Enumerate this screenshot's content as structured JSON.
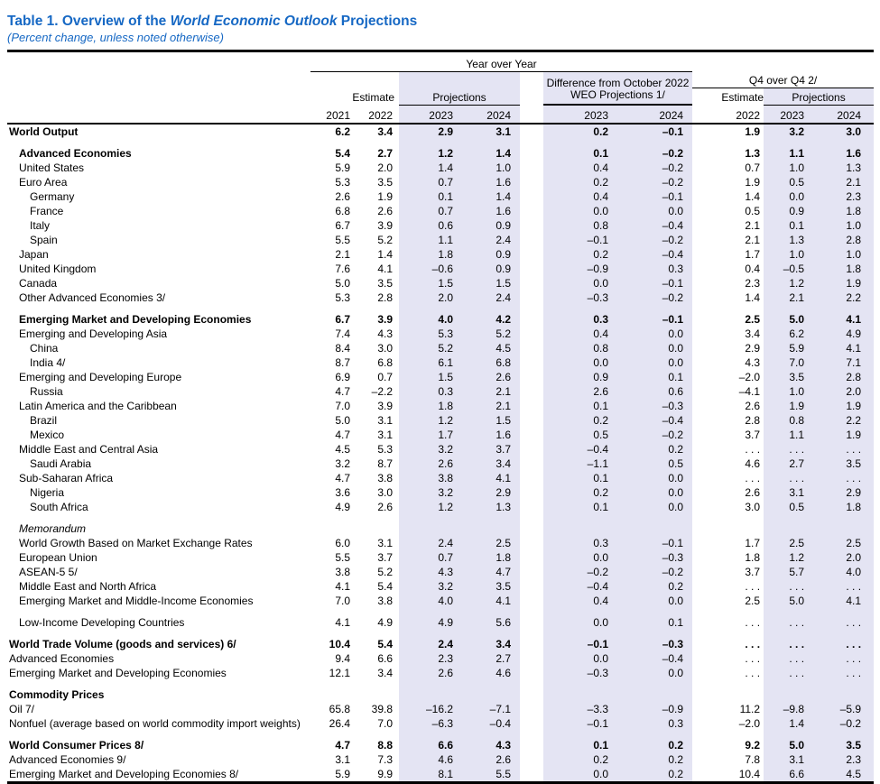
{
  "title": {
    "prefix": "Table 1. Overview of the ",
    "emphasis": "World Economic Outlook",
    "suffix": " Projections"
  },
  "subtitle": "(Percent change, unless noted otherwise)",
  "colors": {
    "title_blue": "#1668C4",
    "band_lavender": "#E4E4F3",
    "rule_black": "#000000"
  },
  "header": {
    "year_over_year": "Year over Year",
    "diff_line1": "Difference from October 2022",
    "diff_line2": "WEO Projections 1/",
    "q4_over_q4": "Q4 over Q4 2/",
    "estimate": "Estimate",
    "projections": "Projections",
    "years_main": [
      "2021",
      "2022",
      "2023",
      "2024"
    ],
    "years_diff": [
      "2023",
      "2024"
    ],
    "years_q4": [
      "2022",
      "2023",
      "2024"
    ]
  },
  "rows": [
    {
      "label": "World Output",
      "indent": 0,
      "bold": true,
      "italic": false,
      "gap_before": false,
      "values": [
        "6.2",
        "3.4",
        "2.9",
        "3.1",
        "0.2",
        "–0.1",
        "1.9",
        "3.2",
        "3.0"
      ]
    },
    {
      "label": "Advanced Economies",
      "indent": 1,
      "bold": true,
      "italic": false,
      "gap_before": true,
      "values": [
        "5.4",
        "2.7",
        "1.2",
        "1.4",
        "0.1",
        "–0.2",
        "1.3",
        "1.1",
        "1.6"
      ]
    },
    {
      "label": "United States",
      "indent": 1,
      "bold": false,
      "italic": false,
      "gap_before": false,
      "values": [
        "5.9",
        "2.0",
        "1.4",
        "1.0",
        "0.4",
        "–0.2",
        "0.7",
        "1.0",
        "1.3"
      ]
    },
    {
      "label": "Euro Area",
      "indent": 1,
      "bold": false,
      "italic": false,
      "gap_before": false,
      "values": [
        "5.3",
        "3.5",
        "0.7",
        "1.6",
        "0.2",
        "–0.2",
        "1.9",
        "0.5",
        "2.1"
      ]
    },
    {
      "label": "Germany",
      "indent": 2,
      "bold": false,
      "italic": false,
      "gap_before": false,
      "values": [
        "2.6",
        "1.9",
        "0.1",
        "1.4",
        "0.4",
        "–0.1",
        "1.4",
        "0.0",
        "2.3"
      ]
    },
    {
      "label": "France",
      "indent": 2,
      "bold": false,
      "italic": false,
      "gap_before": false,
      "values": [
        "6.8",
        "2.6",
        "0.7",
        "1.6",
        "0.0",
        "0.0",
        "0.5",
        "0.9",
        "1.8"
      ]
    },
    {
      "label": "Italy",
      "indent": 2,
      "bold": false,
      "italic": false,
      "gap_before": false,
      "values": [
        "6.7",
        "3.9",
        "0.6",
        "0.9",
        "0.8",
        "–0.4",
        "2.1",
        "0.1",
        "1.0"
      ]
    },
    {
      "label": "Spain",
      "indent": 2,
      "bold": false,
      "italic": false,
      "gap_before": false,
      "values": [
        "5.5",
        "5.2",
        "1.1",
        "2.4",
        "–0.1",
        "–0.2",
        "2.1",
        "1.3",
        "2.8"
      ]
    },
    {
      "label": "Japan",
      "indent": 1,
      "bold": false,
      "italic": false,
      "gap_before": false,
      "values": [
        "2.1",
        "1.4",
        "1.8",
        "0.9",
        "0.2",
        "–0.4",
        "1.7",
        "1.0",
        "1.0"
      ]
    },
    {
      "label": "United Kingdom",
      "indent": 1,
      "bold": false,
      "italic": false,
      "gap_before": false,
      "values": [
        "7.6",
        "4.1",
        "–0.6",
        "0.9",
        "–0.9",
        "0.3",
        "0.4",
        "–0.5",
        "1.8"
      ]
    },
    {
      "label": "Canada",
      "indent": 1,
      "bold": false,
      "italic": false,
      "gap_before": false,
      "values": [
        "5.0",
        "3.5",
        "1.5",
        "1.5",
        "0.0",
        "–0.1",
        "2.3",
        "1.2",
        "1.9"
      ]
    },
    {
      "label": "Other Advanced Economies 3/",
      "indent": 1,
      "bold": false,
      "italic": false,
      "gap_before": false,
      "values": [
        "5.3",
        "2.8",
        "2.0",
        "2.4",
        "–0.3",
        "–0.2",
        "1.4",
        "2.1",
        "2.2"
      ]
    },
    {
      "label": "Emerging Market and Developing Economies",
      "indent": 1,
      "bold": true,
      "italic": false,
      "gap_before": true,
      "values": [
        "6.7",
        "3.9",
        "4.0",
        "4.2",
        "0.3",
        "–0.1",
        "2.5",
        "5.0",
        "4.1"
      ]
    },
    {
      "label": "Emerging and Developing Asia",
      "indent": 1,
      "bold": false,
      "italic": false,
      "gap_before": false,
      "values": [
        "7.4",
        "4.3",
        "5.3",
        "5.2",
        "0.4",
        "0.0",
        "3.4",
        "6.2",
        "4.9"
      ]
    },
    {
      "label": "China",
      "indent": 2,
      "bold": false,
      "italic": false,
      "gap_before": false,
      "values": [
        "8.4",
        "3.0",
        "5.2",
        "4.5",
        "0.8",
        "0.0",
        "2.9",
        "5.9",
        "4.1"
      ]
    },
    {
      "label": "India 4/",
      "indent": 2,
      "bold": false,
      "italic": false,
      "gap_before": false,
      "values": [
        "8.7",
        "6.8",
        "6.1",
        "6.8",
        "0.0",
        "0.0",
        "4.3",
        "7.0",
        "7.1"
      ]
    },
    {
      "label": "Emerging and Developing Europe",
      "indent": 1,
      "bold": false,
      "italic": false,
      "gap_before": false,
      "values": [
        "6.9",
        "0.7",
        "1.5",
        "2.6",
        "0.9",
        "0.1",
        "–2.0",
        "3.5",
        "2.8"
      ]
    },
    {
      "label": "Russia",
      "indent": 2,
      "bold": false,
      "italic": false,
      "gap_before": false,
      "values": [
        "4.7",
        "–2.2",
        "0.3",
        "2.1",
        "2.6",
        "0.6",
        "–4.1",
        "1.0",
        "2.0"
      ]
    },
    {
      "label": "Latin America and the Caribbean",
      "indent": 1,
      "bold": false,
      "italic": false,
      "gap_before": false,
      "values": [
        "7.0",
        "3.9",
        "1.8",
        "2.1",
        "0.1",
        "–0.3",
        "2.6",
        "1.9",
        "1.9"
      ]
    },
    {
      "label": "Brazil",
      "indent": 2,
      "bold": false,
      "italic": false,
      "gap_before": false,
      "values": [
        "5.0",
        "3.1",
        "1.2",
        "1.5",
        "0.2",
        "–0.4",
        "2.8",
        "0.8",
        "2.2"
      ]
    },
    {
      "label": "Mexico",
      "indent": 2,
      "bold": false,
      "italic": false,
      "gap_before": false,
      "values": [
        "4.7",
        "3.1",
        "1.7",
        "1.6",
        "0.5",
        "–0.2",
        "3.7",
        "1.1",
        "1.9"
      ]
    },
    {
      "label": "Middle East and Central Asia",
      "indent": 1,
      "bold": false,
      "italic": false,
      "gap_before": false,
      "values": [
        "4.5",
        "5.3",
        "3.2",
        "3.7",
        "–0.4",
        "0.2",
        ". . .",
        ". . .",
        ". . ."
      ]
    },
    {
      "label": "Saudi Arabia",
      "indent": 2,
      "bold": false,
      "italic": false,
      "gap_before": false,
      "values": [
        "3.2",
        "8.7",
        "2.6",
        "3.4",
        "–1.1",
        "0.5",
        "4.6",
        "2.7",
        "3.5"
      ]
    },
    {
      "label": "Sub-Saharan Africa",
      "indent": 1,
      "bold": false,
      "italic": false,
      "gap_before": false,
      "values": [
        "4.7",
        "3.8",
        "3.8",
        "4.1",
        "0.1",
        "0.0",
        ". . .",
        ". . .",
        ". . ."
      ]
    },
    {
      "label": "Nigeria",
      "indent": 2,
      "bold": false,
      "italic": false,
      "gap_before": false,
      "values": [
        "3.6",
        "3.0",
        "3.2",
        "2.9",
        "0.2",
        "0.0",
        "2.6",
        "3.1",
        "2.9"
      ]
    },
    {
      "label": "South Africa",
      "indent": 2,
      "bold": false,
      "italic": false,
      "gap_before": false,
      "values": [
        "4.9",
        "2.6",
        "1.2",
        "1.3",
        "0.1",
        "0.0",
        "3.0",
        "0.5",
        "1.8"
      ]
    },
    {
      "label": "Memorandum",
      "indent": 1,
      "bold": false,
      "italic": true,
      "gap_before": true,
      "values": [
        "",
        "",
        "",
        "",
        "",
        "",
        "",
        "",
        ""
      ]
    },
    {
      "label": "World Growth Based on Market Exchange Rates",
      "indent": 1,
      "bold": false,
      "italic": false,
      "gap_before": false,
      "values": [
        "6.0",
        "3.1",
        "2.4",
        "2.5",
        "0.3",
        "–0.1",
        "1.7",
        "2.5",
        "2.5"
      ]
    },
    {
      "label": "European Union",
      "indent": 1,
      "bold": false,
      "italic": false,
      "gap_before": false,
      "values": [
        "5.5",
        "3.7",
        "0.7",
        "1.8",
        "0.0",
        "–0.3",
        "1.8",
        "1.2",
        "2.0"
      ]
    },
    {
      "label": "ASEAN-5 5/",
      "indent": 1,
      "bold": false,
      "italic": false,
      "gap_before": false,
      "values": [
        "3.8",
        "5.2",
        "4.3",
        "4.7",
        "–0.2",
        "–0.2",
        "3.7",
        "5.7",
        "4.0"
      ]
    },
    {
      "label": "Middle East and North Africa",
      "indent": 1,
      "bold": false,
      "italic": false,
      "gap_before": false,
      "values": [
        "4.1",
        "5.4",
        "3.2",
        "3.5",
        "–0.4",
        "0.2",
        ". . .",
        ". . .",
        ". . ."
      ]
    },
    {
      "label": "Emerging Market and Middle-Income Economies",
      "indent": 1,
      "bold": false,
      "italic": false,
      "gap_before": false,
      "values": [
        "7.0",
        "3.8",
        "4.0",
        "4.1",
        "0.4",
        "0.0",
        "2.5",
        "5.0",
        "4.1"
      ]
    },
    {
      "label": "Low-Income Developing Countries",
      "indent": 1,
      "bold": false,
      "italic": false,
      "gap_before": true,
      "values": [
        "4.1",
        "4.9",
        "4.9",
        "5.6",
        "0.0",
        "0.1",
        ". . .",
        ". . .",
        ". . ."
      ]
    },
    {
      "label": "World Trade Volume (goods and services) 6/",
      "indent": 0,
      "bold": true,
      "italic": false,
      "gap_before": true,
      "values": [
        "10.4",
        "5.4",
        "2.4",
        "3.4",
        "–0.1",
        "–0.3",
        ". . .",
        ". . .",
        ". . ."
      ]
    },
    {
      "label": "Advanced Economies",
      "indent": 0,
      "bold": false,
      "italic": false,
      "gap_before": false,
      "values": [
        "9.4",
        "6.6",
        "2.3",
        "2.7",
        "0.0",
        "–0.4",
        ". . .",
        ". . .",
        ". . ."
      ]
    },
    {
      "label": "Emerging Market and Developing Economies",
      "indent": 0,
      "bold": false,
      "italic": false,
      "gap_before": false,
      "values": [
        "12.1",
        "3.4",
        "2.6",
        "4.6",
        "–0.3",
        "0.0",
        ". . .",
        ". . .",
        ". . ."
      ]
    },
    {
      "label": "Commodity Prices",
      "indent": 0,
      "bold": true,
      "italic": false,
      "gap_before": true,
      "values": [
        "",
        "",
        "",
        "",
        "",
        "",
        "",
        "",
        ""
      ]
    },
    {
      "label": "Oil 7/",
      "indent": 0,
      "bold": false,
      "italic": false,
      "gap_before": false,
      "values": [
        "65.8",
        "39.8",
        "–16.2",
        "–7.1",
        "–3.3",
        "–0.9",
        "11.2",
        "–9.8",
        "–5.9"
      ]
    },
    {
      "label": "Nonfuel (average based on world commodity import weights)",
      "indent": 0,
      "bold": false,
      "italic": false,
      "gap_before": false,
      "values": [
        "26.4",
        "7.0",
        "–6.3",
        "–0.4",
        "–0.1",
        "0.3",
        "–2.0",
        "1.4",
        "–0.2"
      ]
    },
    {
      "label": "World Consumer Prices 8/",
      "indent": 0,
      "bold": true,
      "italic": false,
      "gap_before": true,
      "values": [
        "4.7",
        "8.8",
        "6.6",
        "4.3",
        "0.1",
        "0.2",
        "9.2",
        "5.0",
        "3.5"
      ]
    },
    {
      "label": "Advanced Economies 9/",
      "indent": 0,
      "bold": false,
      "italic": false,
      "gap_before": false,
      "values": [
        "3.1",
        "7.3",
        "4.6",
        "2.6",
        "0.2",
        "0.2",
        "7.8",
        "3.1",
        "2.3"
      ]
    },
    {
      "label": "Emerging Market and Developing Economies 8/",
      "indent": 0,
      "bold": false,
      "italic": false,
      "gap_before": false,
      "values": [
        "5.9",
        "9.9",
        "8.1",
        "5.5",
        "0.0",
        "0.2",
        "10.4",
        "6.6",
        "4.5"
      ]
    }
  ]
}
